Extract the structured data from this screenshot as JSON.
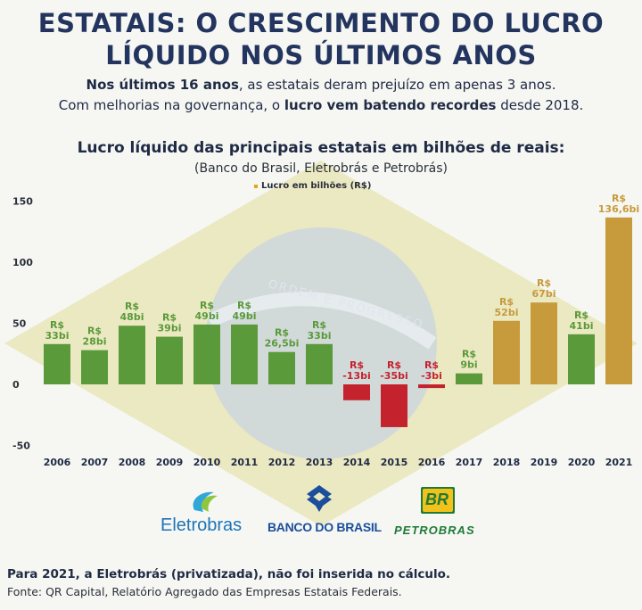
{
  "header": {
    "title_line1": "ESTATAIS: O CRESCIMENTO DO LUCRO",
    "title_line2": "LÍQUIDO NOS ÚLTIMOS ANOS",
    "sub1_bold": "Nos últimos 16 anos",
    "sub1_rest": ", as estatais deram prejuízo em apenas 3 anos.",
    "sub2_pre": "Com melhorias na governança, o ",
    "sub2_bold": "lucro vem batendo recordes",
    "sub2_post": " desde 2018."
  },
  "legend_label": "Lucro em bilhões (R$)",
  "logos": {
    "eletrobras": "Eletrobras",
    "bb": "BANCO DO BRASIL",
    "petrobras": "PETROBRAS",
    "br": "BR"
  },
  "footer": {
    "note": "Para 2021, a Eletrobrás (privatizada), não foi inserida no cálculo.",
    "source": "Fonte: QR Capital, Relatório Agregado das Empresas Estatais Federais."
  },
  "colors": {
    "green": "#5a9a3a",
    "red": "#c4232e",
    "gold": "#c79a3c",
    "title": "#23355f"
  },
  "chart_data": {
    "type": "bar",
    "title": "Lucro líquido das principais estatais em bilhões de reais:",
    "subtitle": "(Banco do Brasil, Eletrobrás e Petrobrás)",
    "categories": [
      "2006",
      "2007",
      "2008",
      "2009",
      "2010",
      "2011",
      "2012",
      "2013",
      "2014",
      "2015",
      "2016",
      "2017",
      "2018",
      "2019",
      "2020",
      "2021"
    ],
    "values": [
      33,
      28,
      48,
      39,
      49,
      49,
      26.5,
      33,
      -13,
      -35,
      -3,
      9,
      52,
      67,
      41,
      136.6
    ],
    "data_labels": [
      [
        "R$",
        "33bi"
      ],
      [
        "R$",
        "28bi"
      ],
      [
        "R$",
        "48bi"
      ],
      [
        "R$",
        "39bi"
      ],
      [
        "R$",
        "49bi"
      ],
      [
        "R$",
        "49bi"
      ],
      [
        "R$",
        "26,5bi"
      ],
      [
        "R$",
        "33bi"
      ],
      [
        "R$",
        "-13bi"
      ],
      [
        "R$",
        "-35bi"
      ],
      [
        "R$",
        "-3bi"
      ],
      [
        "R$",
        "9bi"
      ],
      [
        "R$",
        "52bi"
      ],
      [
        "R$",
        "67bi"
      ],
      [
        "R$",
        "41bi"
      ],
      [
        "R$",
        "136,6bi"
      ]
    ],
    "bar_colors": [
      "green",
      "green",
      "green",
      "green",
      "green",
      "green",
      "green",
      "green",
      "red",
      "red",
      "red",
      "green",
      "gold",
      "gold",
      "green",
      "gold"
    ],
    "yticks": [
      150,
      100,
      50,
      0,
      -50
    ],
    "ylim": [
      -50,
      150
    ],
    "grid": false,
    "legend": "top-center"
  }
}
